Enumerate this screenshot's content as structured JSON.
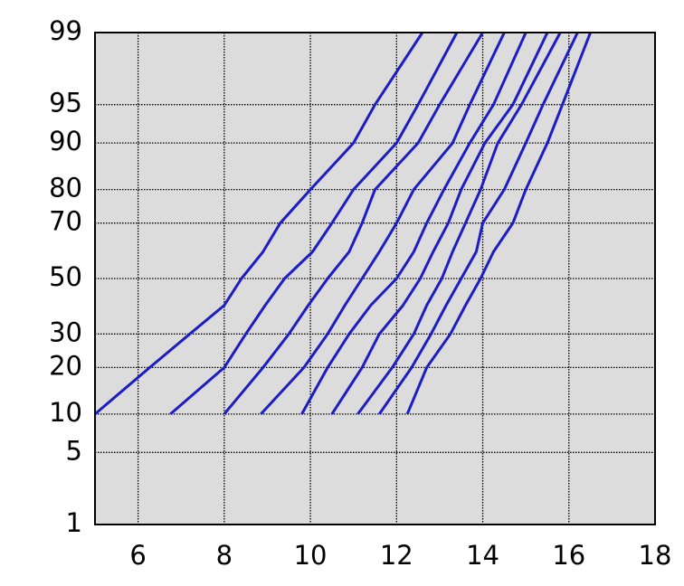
{
  "chart_data": {
    "type": "line",
    "yscale": "probability",
    "grid": true,
    "background": "#dcdcdc",
    "xlim": [
      5,
      18
    ],
    "xticks": [
      6,
      8,
      10,
      12,
      14,
      16,
      18
    ],
    "ylim": [
      1,
      99
    ],
    "yticks": [
      1,
      5,
      10,
      20,
      30,
      50,
      70,
      80,
      90,
      95,
      99
    ],
    "y": [
      10,
      20,
      30,
      40,
      50,
      60,
      70,
      80,
      90,
      95,
      99
    ],
    "series": [
      {
        "color": "#1c1cc8",
        "x": [
          5.0,
          6.27,
          7.2,
          8.0,
          8.4,
          8.9,
          9.3,
          10.0,
          11.0,
          11.5,
          12.6
        ]
      },
      {
        "color": "#1c1cc8",
        "x": [
          6.75,
          8.0,
          8.5,
          8.95,
          9.4,
          10.05,
          10.5,
          11.0,
          12.0,
          12.5,
          13.4
        ]
      },
      {
        "color": "#1c1cc8",
        "x": [
          8.0,
          8.9,
          9.5,
          9.95,
          10.4,
          10.9,
          11.2,
          11.5,
          12.5,
          13.0,
          14.0
        ]
      },
      {
        "color": "#1c1cc8",
        "x": [
          8.85,
          9.85,
          10.4,
          10.8,
          11.2,
          11.6,
          12.0,
          12.4,
          13.3,
          13.7,
          14.5
        ]
      },
      {
        "color": "#1c1cc8",
        "x": [
          9.8,
          10.4,
          10.9,
          11.4,
          12.0,
          12.4,
          12.7,
          13.1,
          13.7,
          14.25,
          15.0
        ]
      },
      {
        "color": "#1c1cc8",
        "x": [
          10.5,
          11.2,
          11.6,
          12.15,
          12.55,
          12.85,
          13.2,
          13.5,
          14.05,
          14.7,
          15.5
        ]
      },
      {
        "color": "#1c1cc8",
        "x": [
          11.1,
          11.9,
          12.4,
          12.7,
          13.05,
          13.3,
          13.6,
          13.95,
          14.35,
          14.9,
          15.8
        ]
      },
      {
        "color": "#1c1cc8",
        "x": [
          11.6,
          12.35,
          12.8,
          13.15,
          13.5,
          13.85,
          14.0,
          14.5,
          15.0,
          15.4,
          16.2
        ]
      },
      {
        "color": "#1c1cc8",
        "x": [
          12.25,
          12.7,
          13.25,
          13.6,
          13.95,
          14.25,
          14.7,
          15.0,
          15.5,
          15.85,
          16.5
        ]
      }
    ]
  }
}
